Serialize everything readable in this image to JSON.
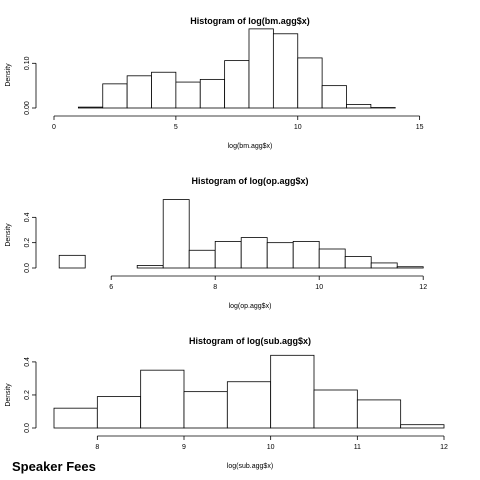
{
  "caption": "Speaker Fees",
  "chart_data": [
    {
      "type": "bar",
      "title": "Histogram of log(bm.agg$x)",
      "xlabel": "log(bm.agg$x)",
      "ylabel": "Density",
      "xlim": [
        0,
        16
      ],
      "ylim": [
        0,
        0.17
      ],
      "xticks": [
        0,
        5,
        10,
        15
      ],
      "yticks": [
        0.0,
        0.1
      ],
      "ytick_labels": [
        "0.00",
        "0.10"
      ],
      "bin_edges": [
        0,
        1,
        2,
        3,
        4,
        5,
        6,
        7,
        8,
        9,
        10,
        11,
        12,
        13,
        14,
        15,
        16
      ],
      "values": [
        0.0,
        0.002,
        0.054,
        0.072,
        0.08,
        0.058,
        0.064,
        0.106,
        0.177,
        0.166,
        0.112,
        0.05,
        0.008,
        0.001,
        0.0,
        0.0
      ]
    },
    {
      "type": "bar",
      "title": "Histogram of log(op.agg$x)",
      "xlabel": "log(op.agg$x)",
      "ylabel": "Density",
      "xlim": [
        4.9,
        12.4
      ],
      "ylim": [
        0,
        0.6
      ],
      "xticks": [
        6,
        8,
        10,
        12
      ],
      "yticks": [
        0.0,
        0.2,
        0.4
      ],
      "ytick_labels": [
        "0.0",
        "0.2",
        "0.4"
      ],
      "bin_edges": [
        4.5,
        5.0,
        5.5,
        6.0,
        6.5,
        7.0,
        7.5,
        8.0,
        8.5,
        9.0,
        9.5,
        10.0,
        10.5,
        11.0,
        11.5,
        12.0,
        12.5
      ],
      "values": [
        0.0,
        0.1,
        0.0,
        0.0,
        0.02,
        0.54,
        0.14,
        0.21,
        0.24,
        0.2,
        0.21,
        0.15,
        0.09,
        0.04,
        0.01,
        0.0
      ]
    },
    {
      "type": "bar",
      "title": "Histogram of log(sub.agg$x)",
      "xlabel": "log(sub.agg$x)",
      "ylabel": "Density",
      "xlim": [
        7.5,
        12
      ],
      "ylim": [
        0,
        0.46
      ],
      "xticks": [
        8,
        9,
        10,
        11,
        12
      ],
      "yticks": [
        0.0,
        0.2,
        0.4
      ],
      "ytick_labels": [
        "0.0",
        "0.2",
        "0.4"
      ],
      "bin_edges": [
        7.5,
        8.0,
        8.5,
        9.0,
        9.5,
        10.0,
        10.5,
        11.0,
        11.5,
        12.0
      ],
      "values": [
        0.12,
        0.19,
        0.35,
        0.22,
        0.28,
        0.44,
        0.23,
        0.17,
        0.02
      ]
    }
  ]
}
